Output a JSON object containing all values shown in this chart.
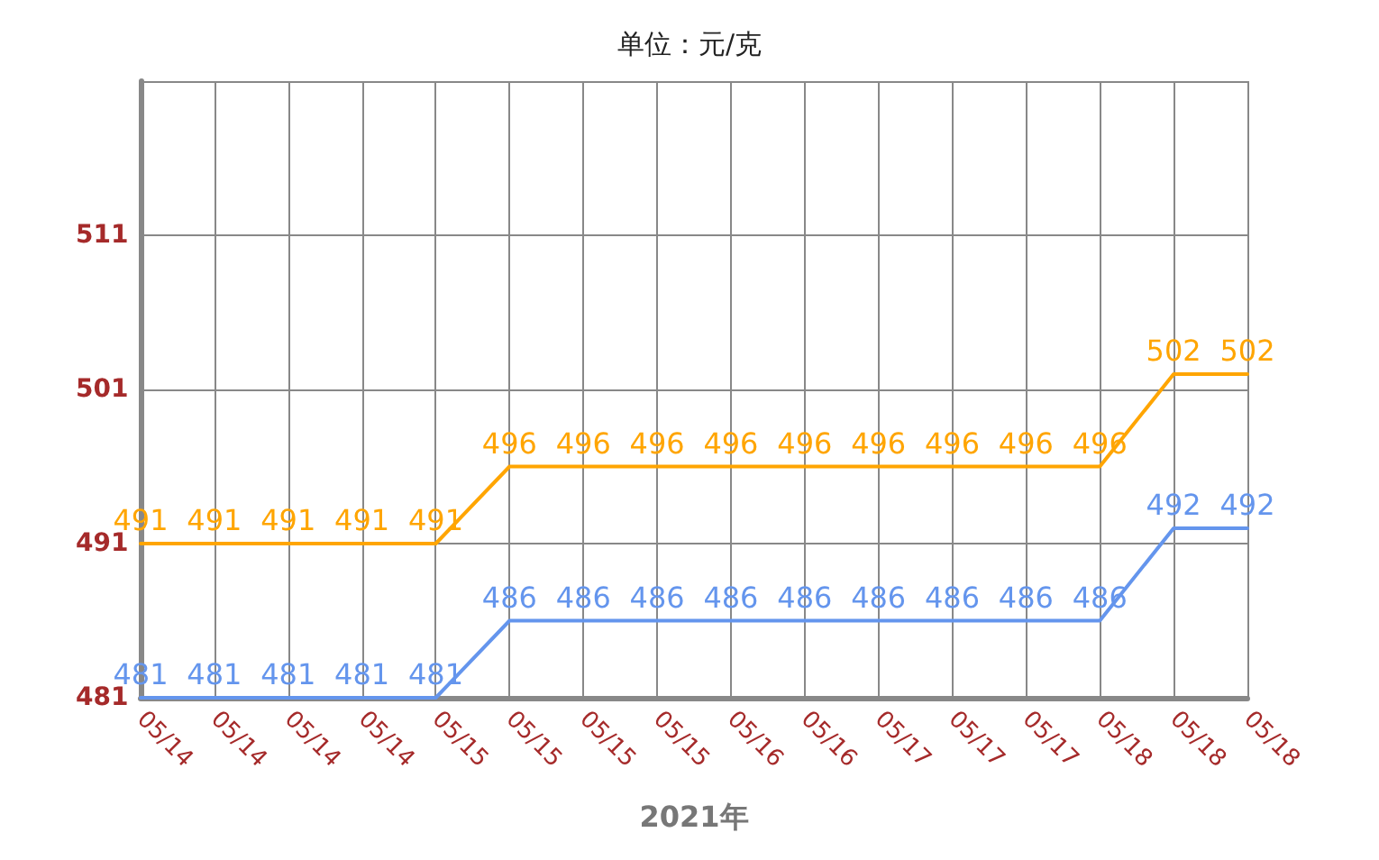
{
  "chart_data": {
    "type": "line",
    "title": "单位：元/克",
    "xlabel": "2021年",
    "categories": [
      "05/14",
      "05/14",
      "05/14",
      "05/14",
      "05/15",
      "05/15",
      "05/15",
      "05/15",
      "05/16",
      "05/16",
      "05/17",
      "05/17",
      "05/17",
      "05/18",
      "05/18",
      "05/18"
    ],
    "series": [
      {
        "color": "#ffa500",
        "values": [
          491,
          491,
          491,
          491,
          491,
          496,
          496,
          496,
          496,
          496,
          496,
          496,
          496,
          496,
          502,
          502
        ]
      },
      {
        "color": "#6495ed",
        "values": [
          481,
          481,
          481,
          481,
          481,
          486,
          486,
          486,
          486,
          486,
          486,
          486,
          486,
          486,
          492,
          492
        ]
      }
    ],
    "ylim": [
      481,
      521
    ],
    "yticks": [
      481,
      491,
      501,
      511,
      {
        "value": 521,
        "label": null
      }
    ],
    "grid": true,
    "data_labels": true,
    "marker": "none",
    "line_style": "solid"
  }
}
